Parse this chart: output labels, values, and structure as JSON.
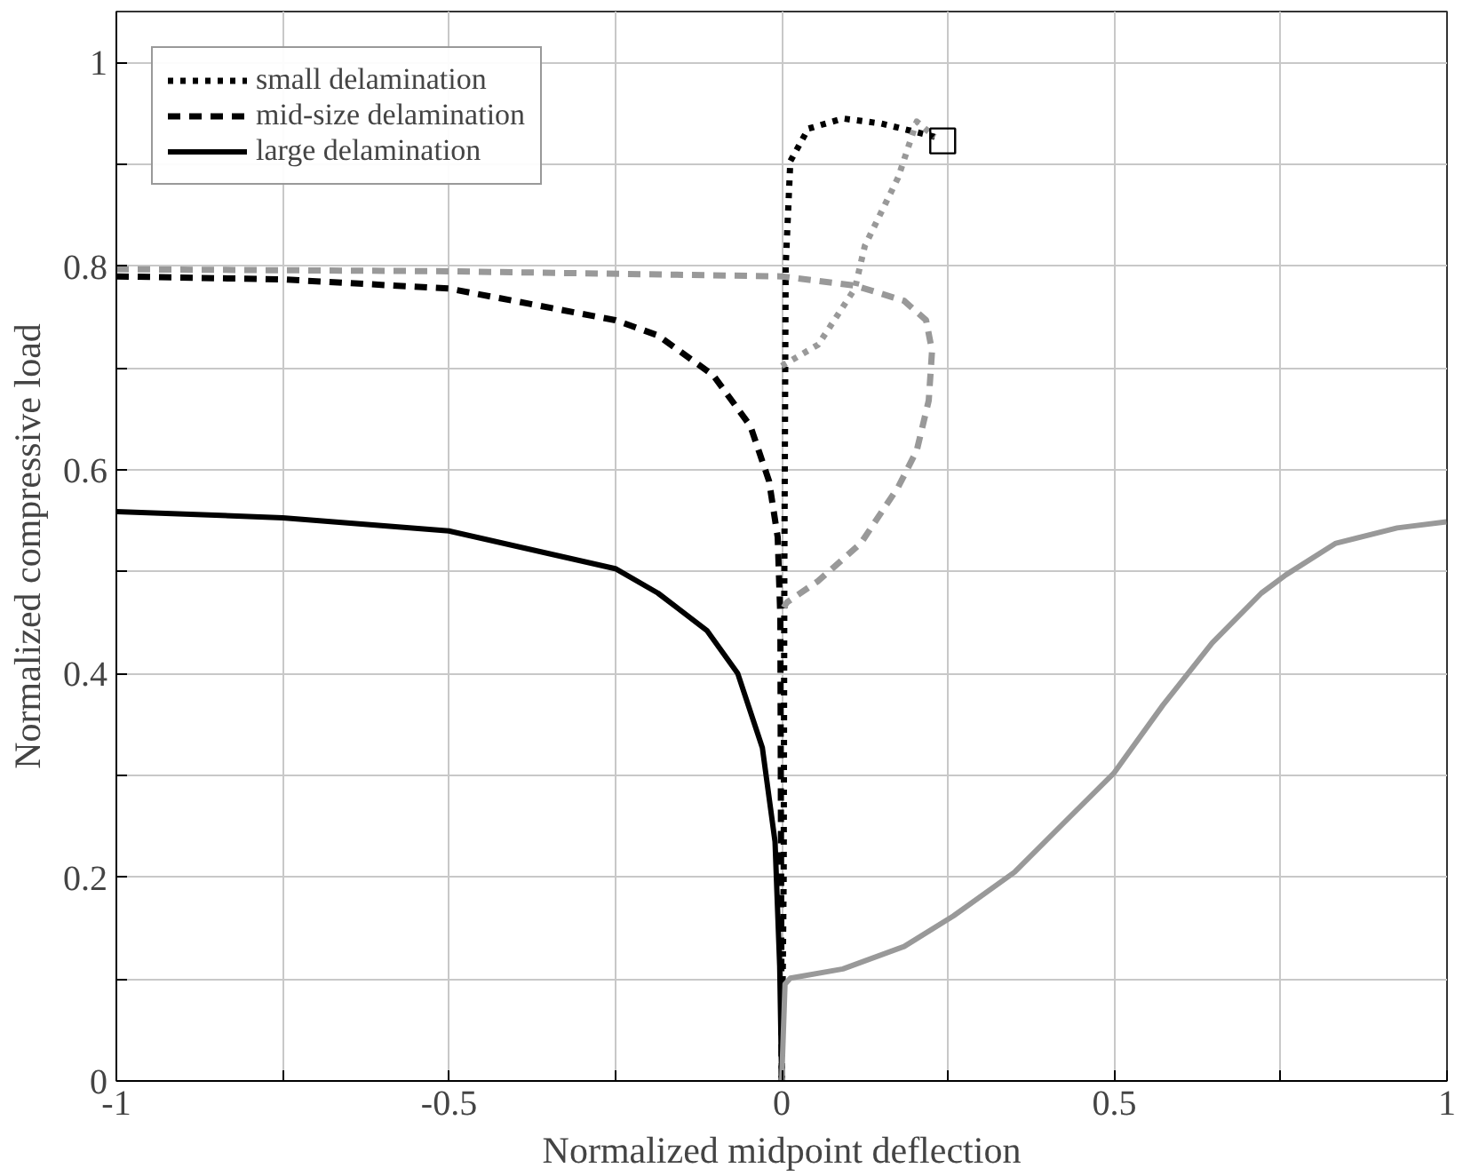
{
  "chart_data": {
    "type": "line",
    "xlabel": "Normalized midpoint deflection",
    "ylabel": "Normalized compressive load",
    "xlim": [
      -1,
      1
    ],
    "ylim": [
      0,
      1.05
    ],
    "xticks": [
      -1,
      {
        "value": -0.75,
        "label": null
      },
      -0.5,
      {
        "value": -0.25,
        "label": null
      },
      0,
      {
        "value": 0.25,
        "label": null
      },
      0.5,
      {
        "value": 0.75,
        "label": null
      },
      1
    ],
    "yticks": [
      0,
      {
        "value": 0.1,
        "label": null
      },
      0.2,
      {
        "value": 0.3,
        "label": null
      },
      0.4,
      {
        "value": 0.5,
        "label": null
      },
      0.6,
      {
        "value": 0.7,
        "label": null
      },
      0.8,
      {
        "value": 0.9,
        "label": null
      },
      1
    ],
    "grid": true,
    "legend": "top left",
    "series": [
      {
        "name": "small delamination",
        "color": "#000000",
        "line_style": "dotted",
        "x": [
          0,
          0.003,
          0.004,
          0.006,
          0.013,
          0.04,
          0.092,
          0.15,
          0.2,
          0.23
        ],
        "values": [
          0,
          0.2,
          0.5,
          0.8,
          0.903,
          0.935,
          0.945,
          0.94,
          0.932,
          0.927
        ]
      },
      {
        "color": "#999999",
        "line_style": "dotted",
        "x": [
          0,
          0.055,
          0.11,
          0.125,
          0.175,
          0.203,
          0.23
        ],
        "values": [
          0.702,
          0.723,
          0.778,
          0.82,
          0.887,
          0.942,
          0.927
        ]
      },
      {
        "name": "mid-size delamination",
        "color": "#000000",
        "line_style": "dashed",
        "x": [
          -1,
          -0.75,
          -0.5,
          -0.25,
          -0.186,
          -0.103,
          -0.047,
          -0.019,
          -0.006,
          -0.002,
          0
        ],
        "values": [
          0.79,
          0.787,
          0.778,
          0.747,
          0.732,
          0.693,
          0.643,
          0.589,
          0.534,
          0.455,
          0
        ]
      },
      {
        "color": "#999999",
        "line_style": "dashed",
        "x": [
          -1,
          -0.5,
          0,
          0.11,
          0.184,
          0.217,
          0.226,
          0.221,
          0.203,
          0.175,
          0.119,
          0.055,
          0.008,
          0.003
        ],
        "values": [
          0.797,
          0.795,
          0.79,
          0.781,
          0.766,
          0.747,
          0.717,
          0.668,
          0.619,
          0.583,
          0.528,
          0.491,
          0.47,
          0.465
        ]
      },
      {
        "name": "large delamination",
        "color": "#000000",
        "line_style": "solid",
        "x": [
          -1,
          -0.75,
          -0.5,
          -0.25,
          -0.186,
          -0.112,
          -0.066,
          -0.029,
          -0.01,
          -0.003,
          0
        ],
        "values": [
          0.559,
          0.553,
          0.54,
          0.503,
          0.479,
          0.442,
          0.4,
          0.327,
          0.235,
          0.113,
          0
        ]
      },
      {
        "color": "#999999",
        "line_style": "solid",
        "x": [
          0,
          0.005,
          0.013,
          0.092,
          0.184,
          0.258,
          0.35,
          0.425,
          0.499,
          0.573,
          0.647,
          0.721,
          0.758,
          0.833,
          0.925,
          0.999
        ],
        "values": [
          0,
          0.095,
          0.101,
          0.11,
          0.132,
          0.162,
          0.205,
          0.254,
          0.302,
          0.369,
          0.43,
          0.479,
          0.497,
          0.528,
          0.543,
          0.549
        ]
      },
      {
        "type": "scatter",
        "marker": "square",
        "color": "#000000",
        "x": [
          0.242
        ],
        "values": [
          0.923
        ]
      }
    ]
  }
}
